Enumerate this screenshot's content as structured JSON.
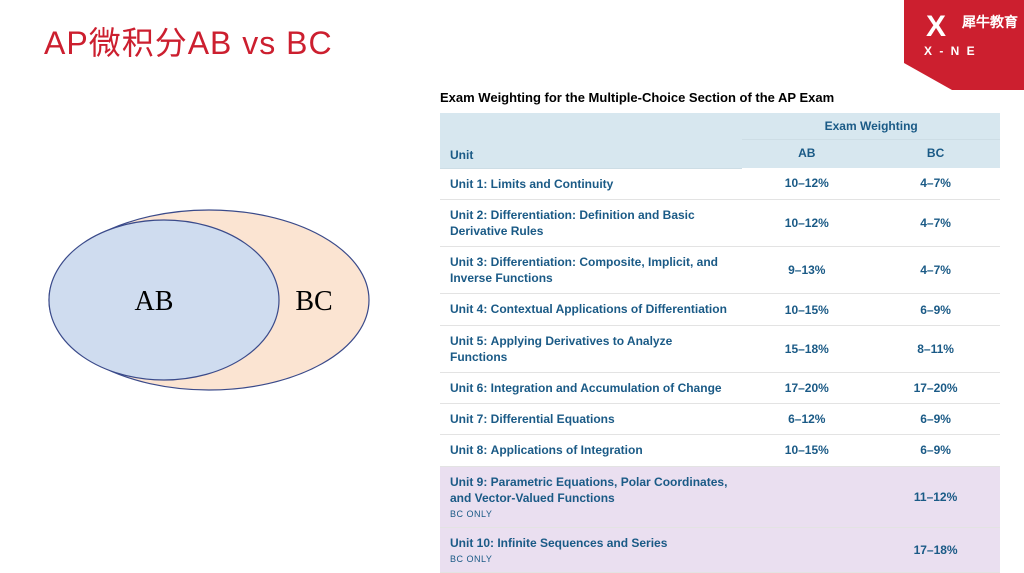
{
  "title": {
    "text": "AP微积分AB vs BC",
    "color": "#cc1f2f"
  },
  "logo": {
    "x": "X",
    "sub": "X - N E",
    "cn": "犀牛教育",
    "bg": "#cc1f2f"
  },
  "venn": {
    "outer_fill": "#fbe4d2",
    "outer_stroke": "#3a4a8a",
    "inner_fill": "#cfdcef",
    "inner_stroke": "#3a4a8a",
    "label_ab": "AB",
    "label_bc": "BC",
    "label_color": "#000000"
  },
  "table": {
    "caption": "Exam Weighting for the Multiple-Choice Section of the AP Exam",
    "header_bg": "#d7e7ef",
    "header_color": "#1a5a86",
    "unit_header": "Unit",
    "group_header": "Exam Weighting",
    "col_ab": "AB",
    "col_bc": "BC",
    "bc_only_label": "BC ONLY",
    "bc_only_bg": "#eadff0",
    "link_color": "#1a5a86",
    "val_color": "#1a5a86",
    "rows": [
      {
        "prefix": "Unit 1:",
        "name": "Limits and Continuity",
        "ab": "10–12%",
        "bc": "4–7%",
        "bc_only": false
      },
      {
        "prefix": "Unit 2:",
        "name": "Differentiation: Definition and Basic Derivative Rules",
        "ab": "10–12%",
        "bc": "4–7%",
        "bc_only": false
      },
      {
        "prefix": "Unit 3:",
        "name": "Differentiation: Composite, Implicit, and Inverse Functions",
        "ab": "9–13%",
        "bc": "4–7%",
        "bc_only": false
      },
      {
        "prefix": "Unit 4:",
        "name": "Contextual Applications of Differentiation",
        "ab": "10–15%",
        "bc": "6–9%",
        "bc_only": false
      },
      {
        "prefix": "Unit 5:",
        "name": "Applying Derivatives to Analyze Functions",
        "ab": "15–18%",
        "bc": "8–11%",
        "bc_only": false
      },
      {
        "prefix": "Unit 6:",
        "name": "Integration and Accumulation of Change",
        "ab": "17–20%",
        "bc": "17–20%",
        "bc_only": false
      },
      {
        "prefix": "Unit 7:",
        "name": "Differential Equations",
        "ab": "6–12%",
        "bc": "6–9%",
        "bc_only": false
      },
      {
        "prefix": "Unit 8:",
        "name": "Applications of Integration",
        "ab": "10–15%",
        "bc": "6–9%",
        "bc_only": false
      },
      {
        "prefix": "Unit 9:",
        "name": "Parametric Equations, Polar Coordinates, and Vector-Valued Functions",
        "ab": "",
        "bc": "11–12%",
        "bc_only": true
      },
      {
        "prefix": "Unit 10:",
        "name": "Infinite Sequences and Series",
        "ab": "",
        "bc": "17–18%",
        "bc_only": true
      }
    ]
  }
}
